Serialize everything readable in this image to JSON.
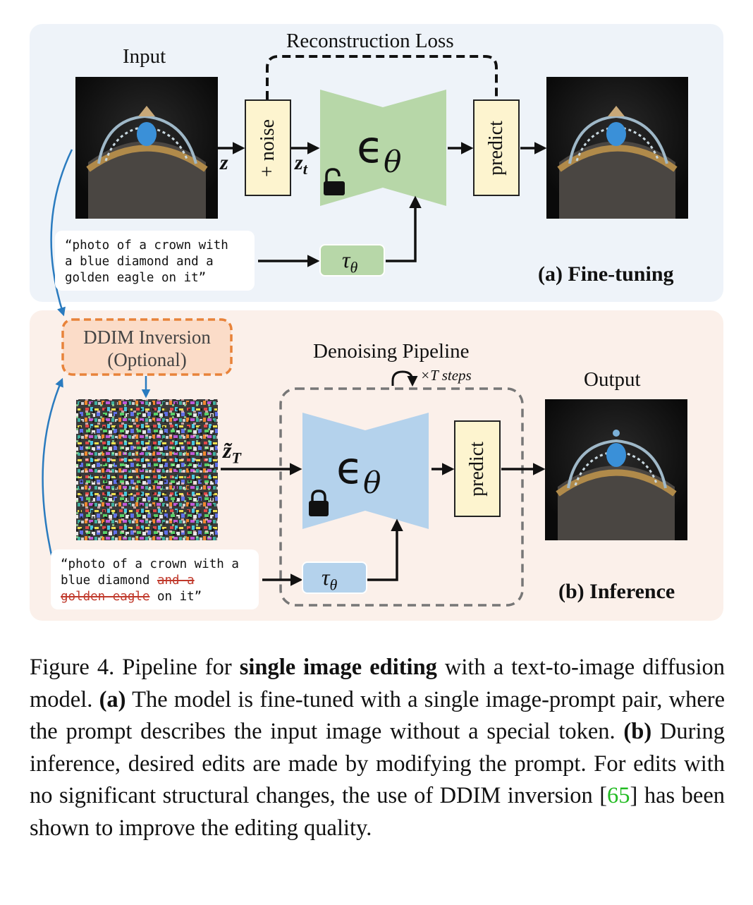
{
  "panel_a": {
    "input_label": "Input",
    "loss_label": "Reconstruction Loss",
    "z_label": "z",
    "noise_label": "+ noise",
    "zt_label": "z",
    "zt_sub": "t",
    "eps_label": "ϵ",
    "eps_sub": "θ",
    "predict_label": "predict",
    "prompt_text": "“photo of a crown with\na blue diamond and a\ngolden eagle on it”",
    "tau_label": "τ",
    "tau_sub": "θ",
    "title": "(a) Fine-tuning",
    "lock_state": "unlocked"
  },
  "panel_b": {
    "ddim_line1": "DDIM Inversion",
    "ddim_line2": "(Optional)",
    "pipeline_label": "Denoising Pipeline",
    "steps_label": "×T steps",
    "output_label": "Output",
    "zT_label": "z̃",
    "zT_sub": "T",
    "eps_label": "ϵ",
    "eps_sub": "θ",
    "predict_label": "predict",
    "prompt_p1": "“photo of a crown with a\nblue diamond ",
    "prompt_strike1": "and a",
    "prompt_strike2": "golden eagle",
    "prompt_p2": " on it”",
    "tau_label": "τ",
    "tau_sub": "θ",
    "title": "(b) Inference",
    "lock_state": "locked"
  },
  "caption": {
    "fig": "Figure 4.  Pipeline for ",
    "bold1": "single image editing",
    "t1": " with a text-to-image diffusion model. ",
    "bold_a": "(a)",
    "t2": " The model is fine-tuned with a single image-prompt pair, where the prompt describes the input image without a special token. ",
    "bold_b": "(b)",
    "t3": " During inference, desired edits are made by modifying the prompt. For edits with no significant structural changes, the use of DDIM inversion [",
    "ref": "65",
    "t4": "] has been shown to improve the editing quality."
  },
  "colors": {
    "panel_a_bg": "#eef3f9",
    "panel_b_bg": "#fbf0ea",
    "unet_green": "#b7d7a8",
    "unet_blue": "#b4d2ec",
    "predict_yellow": "#fdf4cf",
    "ddim_orange": "#e8833a",
    "arrow_blue": "#2a7bbf",
    "strike_red": "#c0392b",
    "ref_green": "#22bb22"
  }
}
